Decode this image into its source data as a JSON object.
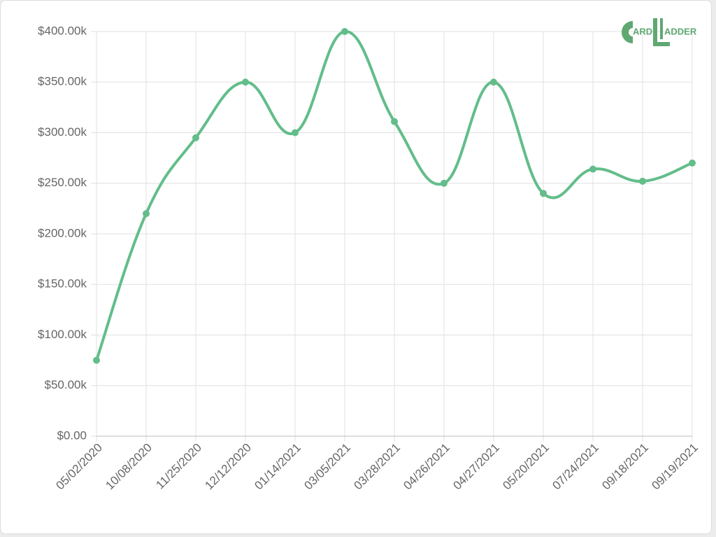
{
  "chart_data": {
    "type": "line",
    "logo": {
      "left": "ARD",
      "right": "ADDER"
    },
    "categories": [
      "05/02/2020",
      "10/08/2020",
      "11/25/2020",
      "12/12/2020",
      "01/14/2021",
      "03/05/2021",
      "03/28/2021",
      "04/26/2021",
      "04/27/2021",
      "05/20/2021",
      "07/24/2021",
      "09/18/2021",
      "09/19/2021"
    ],
    "series": [
      {
        "color": "#63bd8a",
        "values": [
          75000,
          220000,
          295000,
          350000,
          300000,
          400000,
          311000,
          250000,
          350000,
          240000,
          264000,
          252000,
          270000
        ]
      }
    ],
    "ylim": [
      0,
      400000
    ],
    "yticks": [
      {
        "value": 0,
        "label": "$0.00"
      },
      {
        "value": 50000,
        "label": "$50.00k"
      },
      {
        "value": 100000,
        "label": "$100.00k"
      },
      {
        "value": 150000,
        "label": "$150.00k"
      },
      {
        "value": 200000,
        "label": "$200.00k"
      },
      {
        "value": 250000,
        "label": "$250.00k"
      },
      {
        "value": 300000,
        "label": "$300.00k"
      },
      {
        "value": 350000,
        "label": "$350.00k"
      },
      {
        "value": 400000,
        "label": "$400.00k"
      }
    ],
    "grid": true
  }
}
